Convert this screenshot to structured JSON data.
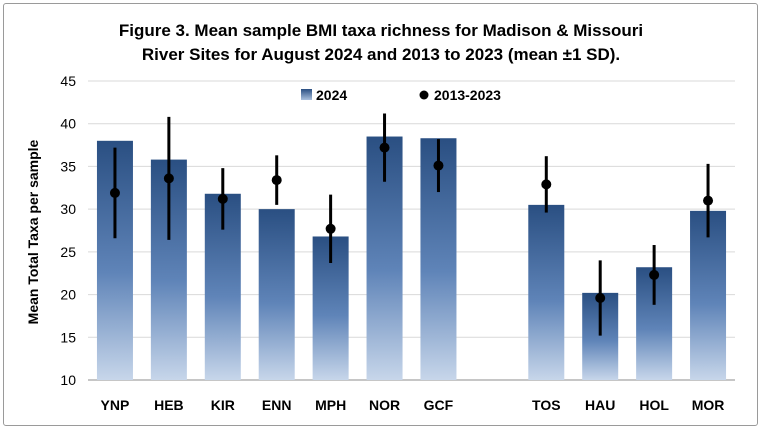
{
  "chart_data": {
    "type": "bar",
    "title_line1": "Figure 3. Mean sample BMI taxa richness for Madison & Missouri",
    "title_line2": "River Sites for August 2024 and 2013 to 2023 (mean ±1 SD).",
    "ylabel": "Mean Total Taxa per sample",
    "xlabel": "",
    "ylim": [
      10,
      45
    ],
    "yticks": [
      "10",
      "15",
      "20",
      "25",
      "30",
      "35",
      "40",
      "45"
    ],
    "categories": [
      "YNP",
      "HEB",
      "KIR",
      "ENN",
      "MPH",
      "NOR",
      "GCF",
      "",
      "TOS",
      "HAU",
      "HOL",
      "MOR"
    ],
    "legend_position": "top",
    "series": [
      {
        "name": "2024",
        "kind": "bar",
        "values": [
          38.0,
          35.8,
          31.8,
          30.0,
          26.8,
          38.5,
          38.3,
          null,
          30.5,
          20.2,
          23.2,
          29.8
        ]
      },
      {
        "name": "2013-2023",
        "kind": "point-errorbar",
        "values": [
          31.9,
          33.6,
          31.2,
          33.4,
          27.7,
          37.2,
          35.1,
          null,
          32.9,
          19.6,
          22.3,
          31.0
        ],
        "error": [
          5.3,
          7.2,
          3.6,
          2.9,
          4.0,
          4.0,
          3.1,
          null,
          3.3,
          4.4,
          3.5,
          4.3
        ]
      }
    ],
    "colors": {
      "bar_top": "#2a4f82",
      "bar_bottom": "#c7d6ea",
      "marker": "#000000"
    }
  }
}
